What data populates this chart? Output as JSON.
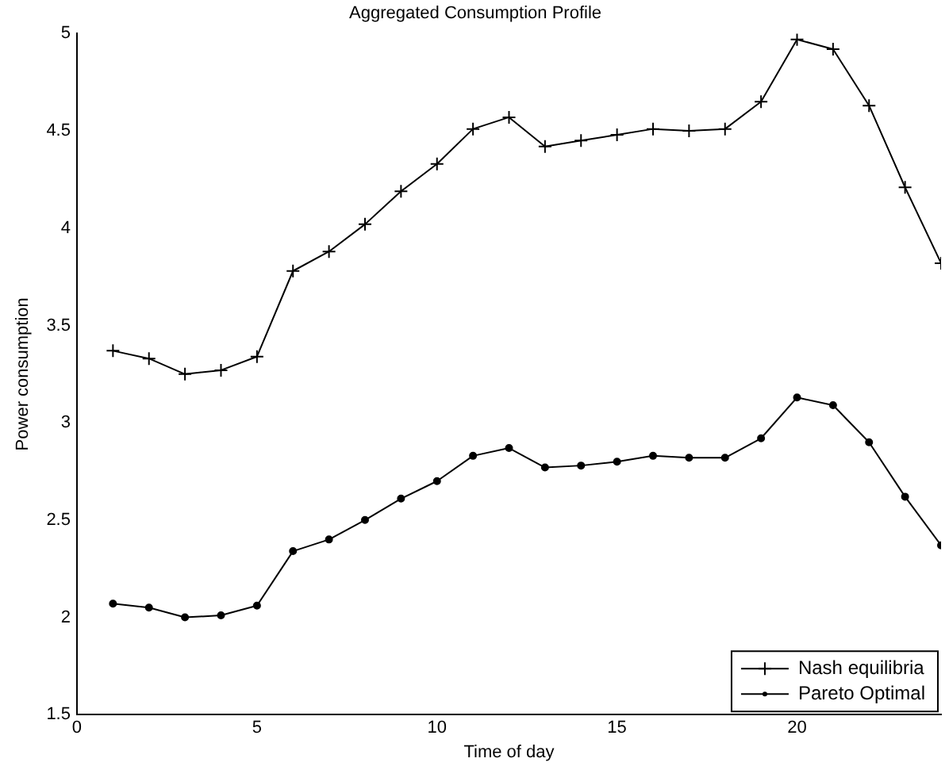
{
  "chart_data": {
    "type": "line",
    "title": "Aggregated Consumption Profile",
    "xlabel": "Time of day",
    "ylabel": "Power consumption",
    "x": [
      1,
      2,
      3,
      4,
      5,
      6,
      7,
      8,
      9,
      10,
      11,
      12,
      13,
      14,
      15,
      16,
      17,
      18,
      19,
      20,
      21,
      22,
      23,
      24
    ],
    "series": [
      {
        "name": "Nash equilibria",
        "color": "#000000",
        "marker": "cross",
        "values": [
          3.37,
          3.33,
          3.25,
          3.27,
          3.34,
          3.78,
          3.88,
          4.02,
          4.19,
          4.33,
          4.51,
          4.57,
          4.42,
          4.45,
          4.48,
          4.51,
          4.5,
          4.51,
          4.65,
          4.97,
          4.92,
          4.63,
          4.21,
          3.82
        ]
      },
      {
        "name": "Pareto Optimal",
        "color": "#000000",
        "marker": "circle",
        "values": [
          2.07,
          2.05,
          2.0,
          2.01,
          2.06,
          2.34,
          2.4,
          2.5,
          2.61,
          2.7,
          2.83,
          2.87,
          2.77,
          2.78,
          2.8,
          2.83,
          2.82,
          2.82,
          2.92,
          3.13,
          3.09,
          2.9,
          2.62,
          2.37
        ]
      }
    ],
    "xlim": [
      0,
      24
    ],
    "xticks": [
      0,
      5,
      10,
      15,
      20
    ],
    "ylim": [
      1.5,
      5
    ],
    "yticks": [
      1.5,
      2,
      2.5,
      3,
      3.5,
      4,
      4.5,
      5
    ],
    "grid": false,
    "legend": "bottom right",
    "line_style": "solid"
  }
}
